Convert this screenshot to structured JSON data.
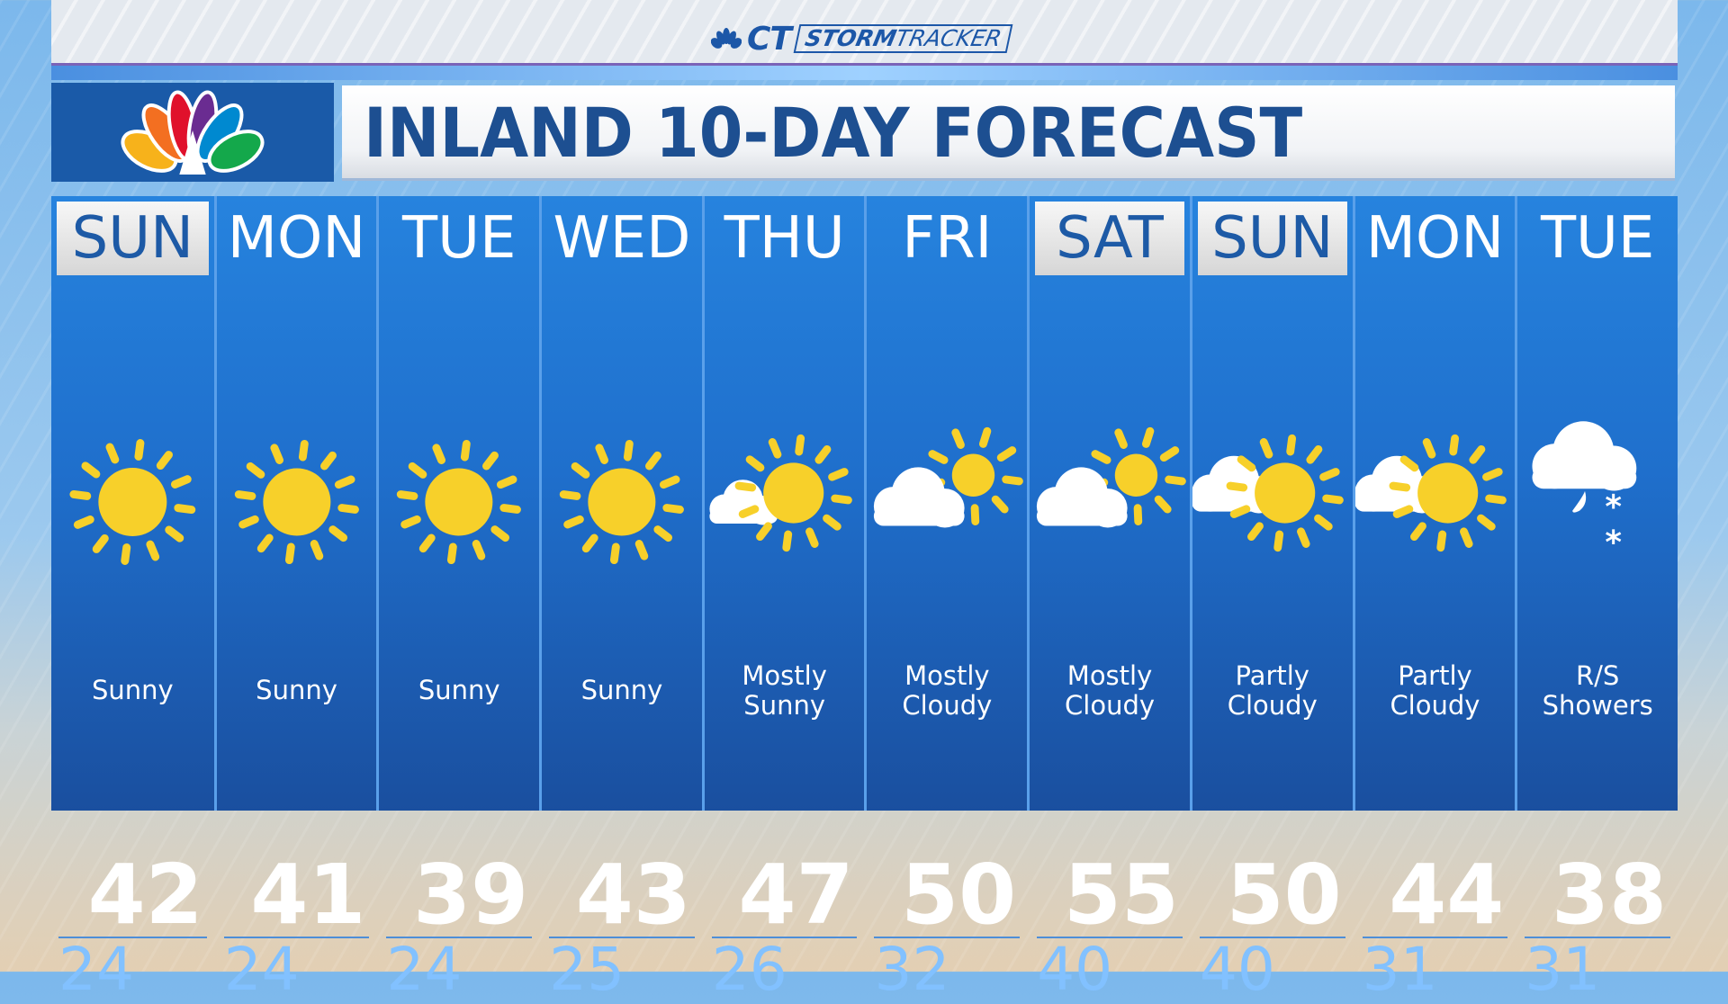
{
  "banner": {
    "brand_prefix": "CT",
    "brand_bold": "STORM",
    "brand_light": "TRACKER"
  },
  "title": "INLAND 10-DAY FORECAST",
  "colors": {
    "panel": "#1f6fcc",
    "highlight_text": "#1d5aa6",
    "sun": "#f7d02a",
    "low_temp": "#82c1ff"
  },
  "days": [
    {
      "day": "SUN",
      "highlight": true,
      "icon": "sunny",
      "condition": [
        "Sunny"
      ],
      "high": "42",
      "low": "24"
    },
    {
      "day": "MON",
      "highlight": false,
      "icon": "sunny",
      "condition": [
        "Sunny"
      ],
      "high": "41",
      "low": "24"
    },
    {
      "day": "TUE",
      "highlight": false,
      "icon": "sunny",
      "condition": [
        "Sunny"
      ],
      "high": "39",
      "low": "24"
    },
    {
      "day": "WED",
      "highlight": false,
      "icon": "sunny",
      "condition": [
        "Sunny"
      ],
      "high": "43",
      "low": "25"
    },
    {
      "day": "THU",
      "highlight": false,
      "icon": "mostly-sunny",
      "condition": [
        "Mostly",
        "Sunny"
      ],
      "high": "47",
      "low": "26"
    },
    {
      "day": "FRI",
      "highlight": false,
      "icon": "mostly-cloudy",
      "condition": [
        "Mostly",
        "Cloudy"
      ],
      "high": "50",
      "low": "32"
    },
    {
      "day": "SAT",
      "highlight": true,
      "icon": "mostly-cloudy",
      "condition": [
        "Mostly",
        "Cloudy"
      ],
      "high": "55",
      "low": "40"
    },
    {
      "day": "SUN",
      "highlight": true,
      "icon": "partly-cloudy",
      "condition": [
        "Partly",
        "Cloudy"
      ],
      "high": "50",
      "low": "40"
    },
    {
      "day": "MON",
      "highlight": false,
      "icon": "partly-cloudy",
      "condition": [
        "Partly",
        "Cloudy"
      ],
      "high": "44",
      "low": "31"
    },
    {
      "day": "TUE",
      "highlight": false,
      "icon": "rain-snow-showers",
      "condition": [
        "R/S",
        "Showers"
      ],
      "high": "38",
      "low": "31"
    }
  ]
}
